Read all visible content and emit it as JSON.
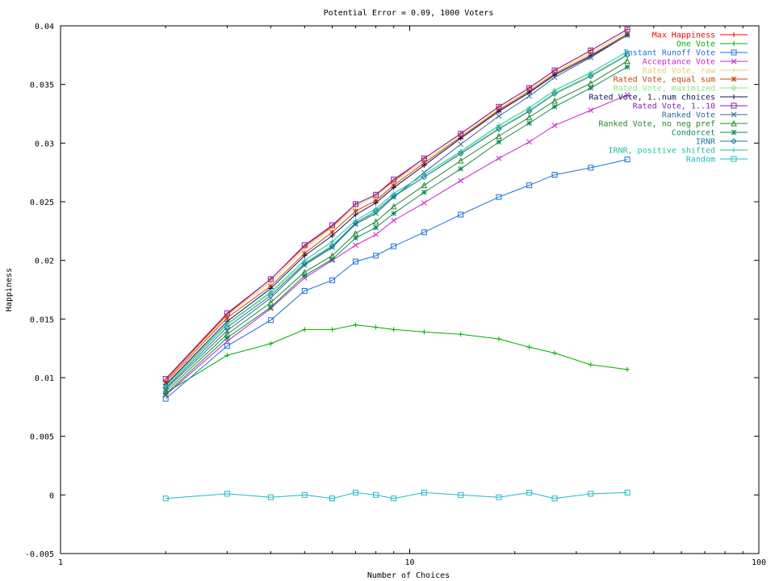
{
  "chart_data": {
    "type": "line",
    "title": "Potential Error = 0.09, 1000 Voters",
    "xlabel": "Number of Choices",
    "ylabel": "Happiness",
    "xscale": "log",
    "xlim": [
      1,
      100
    ],
    "ylim": [
      -0.005,
      0.04
    ],
    "x_ticks": [
      1,
      10,
      100
    ],
    "x_tick_labels": [
      "1",
      "10",
      "100"
    ],
    "y_ticks": [
      -0.005,
      0,
      0.005,
      0.01,
      0.015,
      0.02,
      0.025,
      0.03,
      0.035,
      0.04
    ],
    "y_tick_labels": [
      "-0.005",
      "0",
      "0.005",
      "0.01",
      "0.015",
      "0.02",
      "0.025",
      "0.03",
      "0.035",
      "0.04"
    ],
    "legend_position": "top-right",
    "x": [
      2,
      3,
      4,
      5,
      6,
      7,
      8,
      9,
      11,
      14,
      18,
      22,
      26,
      33,
      42
    ],
    "series": [
      {
        "name": "Max Happiness",
        "color": "#ff0000",
        "marker": "plus",
        "values": [
          0.0098,
          0.0154,
          0.0184,
          0.0212,
          0.0229,
          0.0248,
          0.0256,
          0.0268,
          0.0287,
          0.0308,
          0.0331,
          0.0347,
          0.0362,
          0.0379,
          0.0397
        ]
      },
      {
        "name": "One Vote",
        "color": "#00b000",
        "marker": "plus",
        "values": [
          0.0087,
          0.0119,
          0.0129,
          0.0141,
          0.0141,
          0.0145,
          0.0143,
          0.0141,
          0.0139,
          0.0137,
          0.0133,
          0.0126,
          0.0121,
          0.0111,
          0.0107
        ]
      },
      {
        "name": "Instant Runoff Vote",
        "color": "#1f6fd6",
        "marker": "square",
        "values": [
          0.0082,
          0.0127,
          0.0149,
          0.0174,
          0.0183,
          0.0199,
          0.0204,
          0.0212,
          0.0224,
          0.0239,
          0.0254,
          0.0264,
          0.0273,
          0.0279,
          0.0286
        ]
      },
      {
        "name": "Acceptance Vote",
        "color": "#cc22cc",
        "marker": "x",
        "values": [
          0.0085,
          0.0131,
          0.0159,
          0.0185,
          0.02,
          0.0213,
          0.0222,
          0.0234,
          0.0249,
          0.0268,
          0.0287,
          0.0301,
          0.0315,
          0.0328,
          0.0341
        ]
      },
      {
        "name": "Rated Vote, raw",
        "color": "#e0d070",
        "marker": "plus",
        "values": [
          0.0097,
          0.0153,
          0.0182,
          0.021,
          0.0228,
          0.0246,
          0.0255,
          0.0267,
          0.0285,
          0.0306,
          0.0329,
          0.0345,
          0.036,
          0.0377,
          0.0395
        ]
      },
      {
        "name": "Rated Vote, equal sum",
        "color": "#cc4400",
        "marker": "star",
        "values": [
          0.0096,
          0.0151,
          0.0178,
          0.0206,
          0.0224,
          0.0242,
          0.0251,
          0.0264,
          0.0283,
          0.0305,
          0.0328,
          0.0344,
          0.0359,
          0.0375,
          0.0393
        ]
      },
      {
        "name": "Rated Vote, maximized",
        "color": "#88e888",
        "marker": "diamond",
        "values": [
          0.0092,
          0.0145,
          0.0172,
          0.0198,
          0.0213,
          0.0231,
          0.0241,
          0.0254,
          0.0271,
          0.0292,
          0.0313,
          0.0328,
          0.0343,
          0.0358,
          0.0376
        ]
      },
      {
        "name": "Rated Vote, 1..num choices",
        "color": "#101060",
        "marker": "plus",
        "values": [
          0.0094,
          0.0148,
          0.0176,
          0.0204,
          0.0221,
          0.0239,
          0.0249,
          0.0262,
          0.0281,
          0.0304,
          0.0327,
          0.0343,
          0.0358,
          0.0374,
          0.0392
        ]
      },
      {
        "name": "Rated Vote, 1..10",
        "color": "#8822aa",
        "marker": "square",
        "values": [
          0.0099,
          0.0155,
          0.0184,
          0.0213,
          0.023,
          0.0248,
          0.0256,
          0.0269,
          0.0287,
          0.0308,
          0.0331,
          0.0347,
          0.0362,
          0.0379,
          0.0397
        ]
      },
      {
        "name": "Ranked Vote",
        "color": "#2a6aa0",
        "marker": "x",
        "values": [
          0.009,
          0.014,
          0.0168,
          0.0196,
          0.0211,
          0.0231,
          0.024,
          0.0254,
          0.0275,
          0.0299,
          0.0323,
          0.034,
          0.0356,
          0.0373,
          0.0392
        ]
      },
      {
        "name": "Ranked Vote, no neg pref",
        "color": "#228822",
        "marker": "triangle",
        "values": [
          0.0088,
          0.0137,
          0.0164,
          0.019,
          0.0204,
          0.0223,
          0.0233,
          0.0246,
          0.0264,
          0.0285,
          0.0306,
          0.0322,
          0.0336,
          0.0351,
          0.037
        ]
      },
      {
        "name": "Condorcet",
        "color": "#118855",
        "marker": "star",
        "values": [
          0.0086,
          0.0134,
          0.016,
          0.0187,
          0.0201,
          0.0219,
          0.0228,
          0.024,
          0.0258,
          0.0278,
          0.0301,
          0.0317,
          0.0331,
          0.0347,
          0.0365
        ]
      },
      {
        "name": "IRNR",
        "color": "#1a7a9a",
        "marker": "diamond",
        "values": [
          0.0091,
          0.0143,
          0.017,
          0.0197,
          0.0212,
          0.0232,
          0.0242,
          0.0255,
          0.0271,
          0.0291,
          0.0312,
          0.0327,
          0.0342,
          0.0357,
          0.0375
        ]
      },
      {
        "name": "IRNR, positive shifted",
        "color": "#22c0a0",
        "marker": "plus",
        "values": [
          0.0093,
          0.0146,
          0.0173,
          0.02,
          0.0216,
          0.0234,
          0.0244,
          0.0257,
          0.0273,
          0.0293,
          0.0315,
          0.033,
          0.0345,
          0.036,
          0.0378
        ]
      },
      {
        "name": "Random",
        "color": "#22b8c8",
        "marker": "square",
        "values": [
          -0.0003,
          0.0001,
          -0.0002,
          0.0,
          -0.0003,
          0.0002,
          0.0,
          -0.0003,
          0.0002,
          0.0,
          -0.0002,
          0.0002,
          -0.0003,
          0.0001,
          0.0002
        ]
      }
    ]
  }
}
